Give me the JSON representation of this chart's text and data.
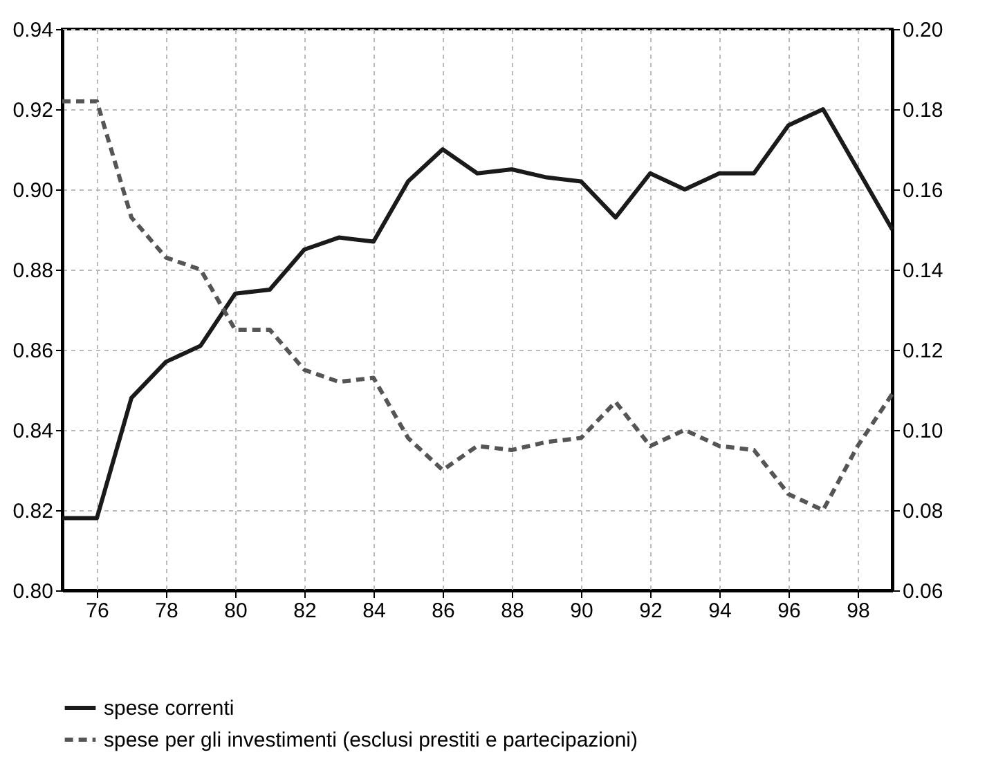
{
  "chart_data": {
    "type": "line",
    "x": [
      75,
      76,
      77,
      78,
      79,
      80,
      81,
      82,
      83,
      84,
      85,
      86,
      87,
      88,
      89,
      90,
      91,
      92,
      93,
      94,
      95,
      96,
      97,
      98,
      99
    ],
    "series": [
      {
        "name": "spese correnti",
        "color": "#1a1a1a",
        "line_style": "solid",
        "values": [
          0.818,
          0.818,
          0.848,
          0.857,
          0.861,
          0.874,
          0.875,
          0.885,
          0.888,
          0.887,
          0.902,
          0.91,
          0.904,
          0.905,
          0.903,
          0.902,
          0.893,
          0.904,
          0.9,
          0.904,
          0.904,
          0.916,
          0.92,
          0.905,
          0.89
        ]
      },
      {
        "name": "spese per gli investimenti (esclusi prestiti e partecipazioni)",
        "color": "#555555",
        "line_style": "dashed",
        "axis": "y2",
        "values": [
          0.182,
          0.182,
          0.153,
          0.143,
          0.14,
          0.125,
          0.125,
          0.115,
          0.112,
          0.113,
          0.098,
          0.09,
          0.096,
          0.095,
          0.097,
          0.098,
          0.107,
          0.096,
          0.1,
          0.096,
          0.095,
          0.084,
          0.08,
          0.096,
          0.109
        ]
      }
    ],
    "xlim": [
      75,
      99
    ],
    "xticks": [
      76,
      78,
      80,
      82,
      84,
      86,
      88,
      90,
      92,
      94,
      96,
      98
    ],
    "ylim": [
      0.8,
      0.94
    ],
    "yticks": [
      {
        "value": 0.8,
        "label": "0.80"
      },
      {
        "value": 0.82,
        "label": "0.82"
      },
      {
        "value": 0.84,
        "label": "0.84"
      },
      {
        "value": 0.86,
        "label": "0.86"
      },
      {
        "value": 0.88,
        "label": "0.88"
      },
      {
        "value": 0.9,
        "label": "0.90"
      },
      {
        "value": 0.92,
        "label": "0.92"
      },
      {
        "value": 0.94,
        "label": "0.94"
      }
    ],
    "y2lim": [
      0.06,
      0.2
    ],
    "y2ticks": [
      {
        "value": 0.06,
        "label": "0.06"
      },
      {
        "value": 0.08,
        "label": "0.08"
      },
      {
        "value": 0.1,
        "label": "0.10"
      },
      {
        "value": 0.12,
        "label": "0.12"
      },
      {
        "value": 0.14,
        "label": "0.14"
      },
      {
        "value": 0.16,
        "label": "0.16"
      },
      {
        "value": 0.18,
        "label": "0.18"
      },
      {
        "value": 0.2,
        "label": "0.20"
      }
    ],
    "grid": true,
    "legend": "bottom"
  }
}
